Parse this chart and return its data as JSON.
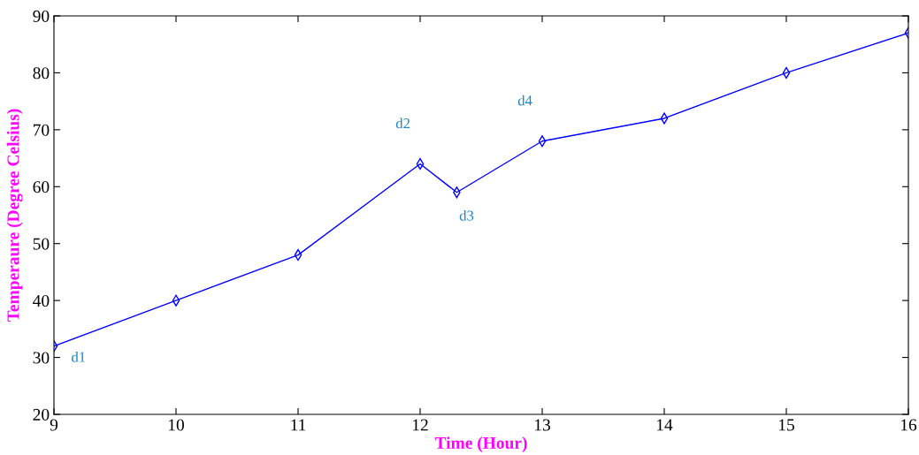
{
  "chart_data": {
    "type": "line",
    "xlabel": "Time (Hour)",
    "ylabel": "Temperaure (Degree Celsius)",
    "x": [
      9,
      10,
      11,
      12,
      12.3,
      13,
      14,
      15,
      16
    ],
    "series": [
      {
        "color": "#0000ff",
        "values": [
          32,
          40,
          48,
          64,
          59,
          68,
          72,
          80,
          87
        ]
      }
    ],
    "xlim": [
      9,
      16
    ],
    "xticks": [
      9,
      10,
      11,
      12,
      13,
      14,
      15,
      16
    ],
    "ylim": [
      20,
      90
    ],
    "yticks": [
      20,
      30,
      40,
      50,
      60,
      70,
      80,
      90
    ],
    "annotations": [
      {
        "text": "d1",
        "x": 9,
        "y": 32
      },
      {
        "text": "d2",
        "x": 12,
        "y": 64
      },
      {
        "text": "d3",
        "x": 12.3,
        "y": 59
      },
      {
        "text": "d4",
        "x": 13,
        "y": 68
      }
    ],
    "marker": "diamond",
    "line_style": "solid",
    "grid": false,
    "legend": false
  }
}
